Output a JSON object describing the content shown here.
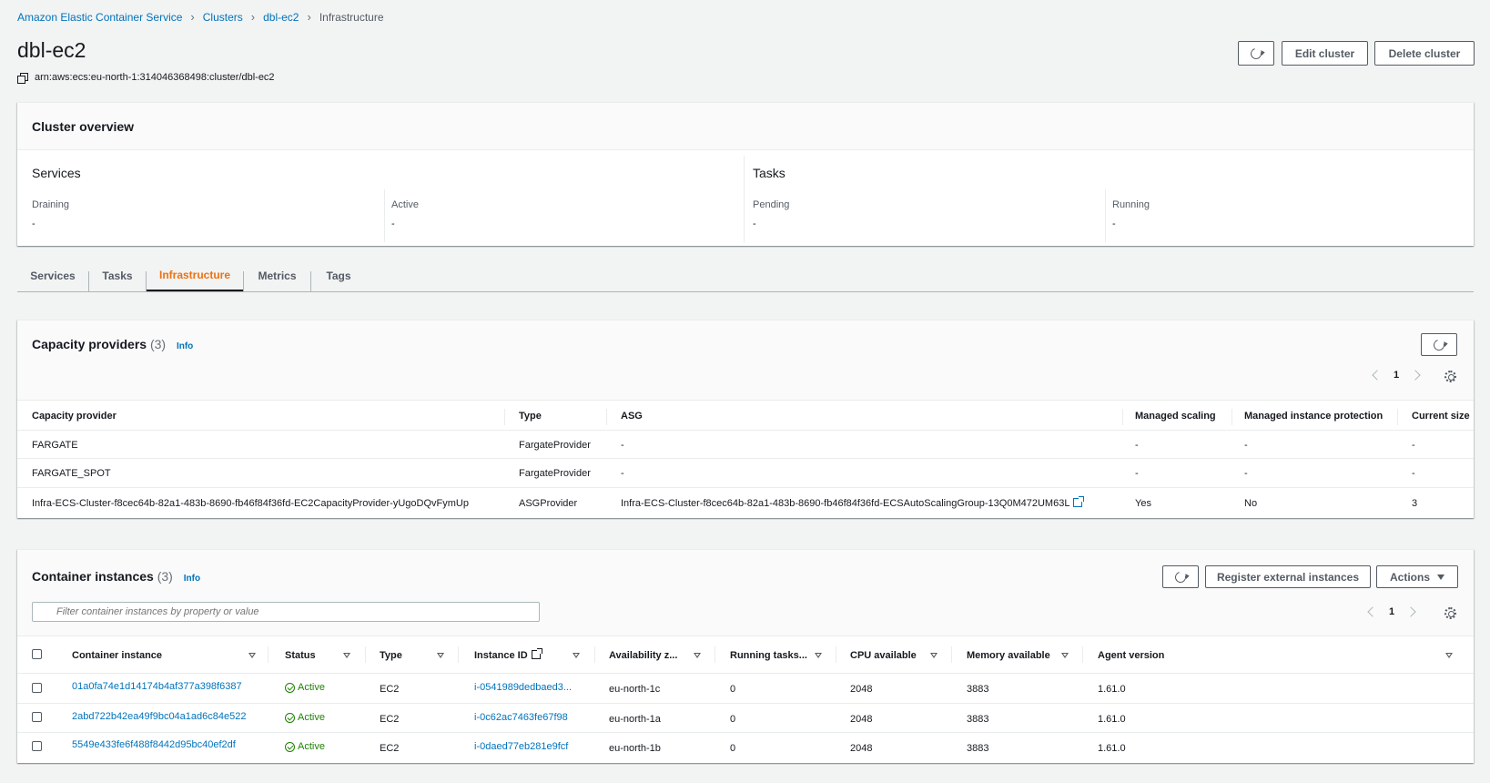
{
  "breadcrumb": [
    {
      "label": "Amazon Elastic Container Service"
    },
    {
      "label": "Clusters"
    },
    {
      "label": "dbl-ec2"
    },
    {
      "label": "Infrastructure"
    }
  ],
  "page": {
    "title": "dbl-ec2",
    "arn": "arn:aws:ecs:eu-north-1:314046368498:cluster/dbl-ec2",
    "edit_label": "Edit cluster",
    "delete_label": "Delete cluster"
  },
  "overview": {
    "title": "Cluster overview",
    "services": {
      "title": "Services",
      "draining_label": "Draining",
      "draining_value": "-",
      "active_label": "Active",
      "active_value": "-"
    },
    "tasks": {
      "title": "Tasks",
      "pending_label": "Pending",
      "pending_value": "-",
      "running_label": "Running",
      "running_value": "-"
    }
  },
  "tabs": [
    "Services",
    "Tasks",
    "Infrastructure",
    "Metrics",
    "Tags"
  ],
  "active_tab": "Infrastructure",
  "capacity": {
    "title": "Capacity providers",
    "count": "(3)",
    "info": "Info",
    "page": "1",
    "columns": [
      "Capacity provider",
      "Type",
      "ASG",
      "Managed scaling",
      "Managed instance protection",
      "Current size"
    ],
    "rows": [
      {
        "provider": "FARGATE",
        "type": "FargateProvider",
        "asg": "-",
        "scaling": "-",
        "protection": "-",
        "size": "-"
      },
      {
        "provider": "FARGATE_SPOT",
        "type": "FargateProvider",
        "asg": "-",
        "scaling": "-",
        "protection": "-",
        "size": "-"
      },
      {
        "provider": "Infra-ECS-Cluster-f8cec64b-82a1-483b-8690-fb46f84f36fd-EC2CapacityProvider-yUgoDQvFymUp",
        "type": "ASGProvider",
        "asg": "Infra-ECS-Cluster-f8cec64b-82a1-483b-8690-fb46f84f36fd-ECSAutoScalingGroup-13Q0M472UM63L",
        "scaling": "Yes",
        "protection": "No",
        "size": "3"
      }
    ]
  },
  "instances": {
    "title": "Container instances",
    "count": "(3)",
    "info": "Info",
    "register_label": "Register external instances",
    "actions_label": "Actions",
    "filter_placeholder": "Filter container instances by property or value",
    "page": "1",
    "columns": [
      "Container instance",
      "Status",
      "Type",
      "Instance ID",
      "Availability z...",
      "Running tasks...",
      "CPU available",
      "Memory available",
      "Agent version"
    ],
    "rows": [
      {
        "id": "01a0fa74e1d14174b4af377a398f6387",
        "status": "Active",
        "type": "EC2",
        "instance": "i-0541989dedbaed3...",
        "az": "eu-north-1c",
        "tasks": "0",
        "cpu": "2048",
        "mem": "3883",
        "agent": "1.61.0"
      },
      {
        "id": "2abd722b42ea49f9bc04a1ad6c84e522",
        "status": "Active",
        "type": "EC2",
        "instance": "i-0c62ac7463fe67f98",
        "az": "eu-north-1a",
        "tasks": "0",
        "cpu": "2048",
        "mem": "3883",
        "agent": "1.61.0"
      },
      {
        "id": "5549e433fe6f488f8442d95bc40ef2df",
        "status": "Active",
        "type": "EC2",
        "instance": "i-0daed77eb281e9fcf",
        "az": "eu-north-1b",
        "tasks": "0",
        "cpu": "2048",
        "mem": "3883",
        "agent": "1.61.0"
      }
    ]
  },
  "colors": {
    "link": "#0073bb",
    "accent": "#ec7211",
    "success": "#1d8102"
  }
}
